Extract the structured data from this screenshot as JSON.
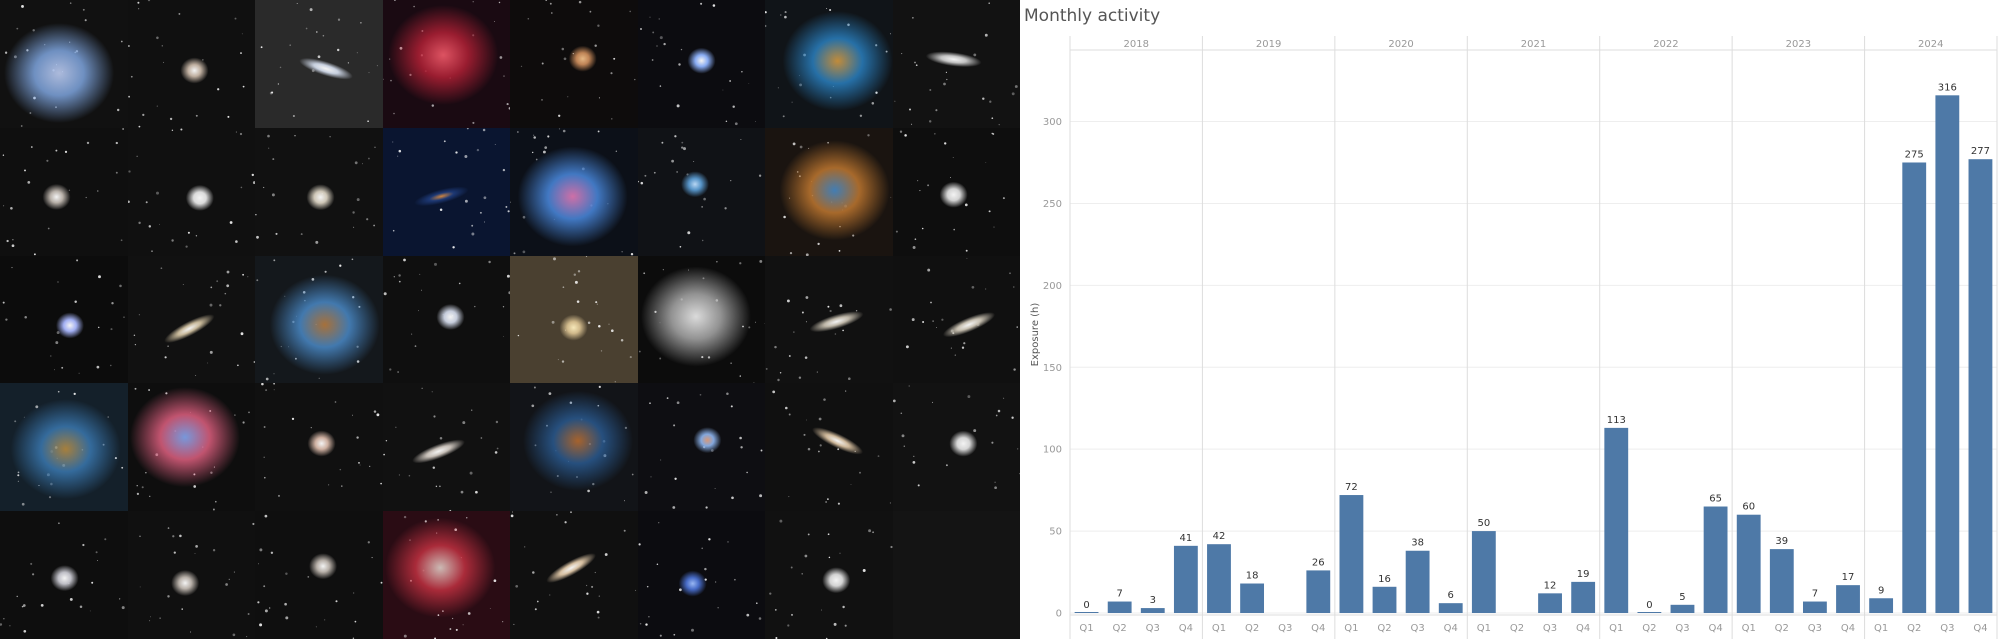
{
  "gallery": {
    "tiles": [
      {
        "kind": "nebula-small",
        "color": "#7fa6e0",
        "accent": "#c8d8ff",
        "bg": "#111"
      },
      {
        "kind": "galaxy-group",
        "color": "#c9b8a8",
        "accent": "#ffffff",
        "bg": "#101010"
      },
      {
        "kind": "comet-streak",
        "color": "#cfd8e8",
        "accent": "#ffffff",
        "bg": "#2a2a2a"
      },
      {
        "kind": "horsehead",
        "color": "#b02035",
        "accent": "#ff6070",
        "bg": "#1a0a12"
      },
      {
        "kind": "spiral-galaxy",
        "color": "#c88a5a",
        "accent": "#f0c08a",
        "bg": "#0e0c0c"
      },
      {
        "kind": "star-field-blue",
        "color": "#8fb4ff",
        "accent": "#ffffff",
        "bg": "#0c0c10"
      },
      {
        "kind": "nebula-colorful",
        "color": "#2a80c0",
        "accent": "#e0a040",
        "bg": "#101418"
      },
      {
        "kind": "elliptical-galaxy",
        "color": "#cccccc",
        "accent": "#ffffff",
        "bg": "#121212"
      },
      {
        "kind": "galaxy-small",
        "color": "#c0b8b0",
        "accent": "#ffffff",
        "bg": "#0f0f0f"
      },
      {
        "kind": "globular",
        "color": "#e6e6e6",
        "accent": "#ffffff",
        "bg": "#101010"
      },
      {
        "kind": "globular-small",
        "color": "#d8d0c0",
        "accent": "#ffffff",
        "bg": "#111"
      },
      {
        "kind": "comet-twilight",
        "color": "#1e3a78",
        "accent": "#d88a40",
        "bg": "#0a1530"
      },
      {
        "kind": "planetary-nebula",
        "color": "#4a8ae0",
        "accent": "#f080c0",
        "bg": "#0c1018"
      },
      {
        "kind": "planetary-small",
        "color": "#5a9ad0",
        "accent": "#c0e0ff",
        "bg": "#101216"
      },
      {
        "kind": "eagle-nebula",
        "color": "#c07830",
        "accent": "#4a90d0",
        "bg": "#1a1410"
      },
      {
        "kind": "globular-faint",
        "color": "#dddddd",
        "accent": "#ffffff",
        "bg": "#0e0e0e"
      },
      {
        "kind": "star-field",
        "color": "#aab8ff",
        "accent": "#ffffff",
        "bg": "#0c0c0c"
      },
      {
        "kind": "galaxy-oval",
        "color": "#d0c0a0",
        "accent": "#ffffff",
        "bg": "#111"
      },
      {
        "kind": "pillar-nebula",
        "color": "#4a8ac8",
        "accent": "#c08040",
        "bg": "#14181c"
      },
      {
        "kind": "open-cluster",
        "color": "#cfd6e6",
        "accent": "#ffffff",
        "bg": "#0f0f0f"
      },
      {
        "kind": "galaxy-glow",
        "color": "#d8c090",
        "accent": "#fff0c0",
        "bg": "#4a4030"
      },
      {
        "kind": "star-field-dark",
        "color": "#aaaaaa",
        "accent": "#ffffff",
        "bg": "#0c0c0c"
      },
      {
        "kind": "galaxy-edge",
        "color": "#c8c0b0",
        "accent": "#ffffff",
        "bg": "#111"
      },
      {
        "kind": "galaxy-edge-tilt",
        "color": "#d0c8b8",
        "accent": "#ffffff",
        "bg": "#101010"
      },
      {
        "kind": "nebula-sho",
        "color": "#3a78b0",
        "accent": "#c09040",
        "bg": "#14202a"
      },
      {
        "kind": "ring-nebula",
        "color": "#e06080",
        "accent": "#8ab0ff",
        "bg": "#0e0e0e"
      },
      {
        "kind": "galaxy-face",
        "color": "#d8b8a8",
        "accent": "#ffffff",
        "bg": "#101010"
      },
      {
        "kind": "galaxy-spindle",
        "color": "#d0c8c0",
        "accent": "#ffffff",
        "bg": "#111"
      },
      {
        "kind": "dark-nebula",
        "color": "#2a5a90",
        "accent": "#c07030",
        "bg": "#121418"
      },
      {
        "kind": "dumbbell",
        "color": "#8ab0e8",
        "accent": "#e0a080",
        "bg": "#0e0e12"
      },
      {
        "kind": "galaxy-tilt",
        "color": "#d8c0a0",
        "accent": "#ffffff",
        "bg": "#101010"
      },
      {
        "kind": "globular-bright",
        "color": "#e0e0e0",
        "accent": "#ffffff",
        "bg": "#121212"
      },
      {
        "kind": "whirlpool",
        "color": "#c8c8d0",
        "accent": "#ffffff",
        "bg": "#0e0e0e"
      },
      {
        "kind": "galaxy-pair",
        "color": "#c0b8b0",
        "accent": "#ffffff",
        "bg": "#101010"
      },
      {
        "kind": "galaxy-tiny",
        "color": "#c0b8b0",
        "accent": "#ffffff",
        "bg": "#0f0f0f"
      },
      {
        "kind": "crescent-nebula",
        "color": "#c03040",
        "accent": "#e8d8d0",
        "bg": "#2a0c14"
      },
      {
        "kind": "galaxy-sombrero",
        "color": "#e0c8a8",
        "accent": "#ffffff",
        "bg": "#101010"
      },
      {
        "kind": "blue-snowflake",
        "color": "#4a70d0",
        "accent": "#a0c0ff",
        "bg": "#0c0c10"
      },
      {
        "kind": "globular-dim",
        "color": "#dddddd",
        "accent": "#ffffff",
        "bg": "#111"
      },
      {
        "kind": "empty",
        "color": "#1a1a1a",
        "accent": "#1a1a1a",
        "bg": "#141414"
      }
    ]
  },
  "chart_title": "Monthly activity",
  "chart_data": {
    "type": "bar",
    "title": "Monthly activity",
    "ylabel": "Exposure (h)",
    "xlabel": "",
    "ylim": [
      0,
      340
    ],
    "yticks": [
      0,
      50,
      100,
      150,
      200,
      250,
      300
    ],
    "grid": true,
    "bar_color": "#4e79a7",
    "years": [
      {
        "year": "2018",
        "quarters": [
          {
            "q": "Q1",
            "value": 0,
            "label": "0"
          },
          {
            "q": "Q2",
            "value": 7,
            "label": "7"
          },
          {
            "q": "Q3",
            "value": 3,
            "label": "3"
          },
          {
            "q": "Q4",
            "value": 41,
            "label": "41"
          }
        ]
      },
      {
        "year": "2019",
        "quarters": [
          {
            "q": "Q1",
            "value": 42,
            "label": "42"
          },
          {
            "q": "Q2",
            "value": 18,
            "label": "18"
          },
          {
            "q": "Q3",
            "value": null,
            "label": ""
          },
          {
            "q": "Q4",
            "value": 26,
            "label": "26"
          }
        ]
      },
      {
        "year": "2020",
        "quarters": [
          {
            "q": "Q1",
            "value": 72,
            "label": "72"
          },
          {
            "q": "Q2",
            "value": 16,
            "label": "16"
          },
          {
            "q": "Q3",
            "value": 38,
            "label": "38"
          },
          {
            "q": "Q4",
            "value": 6,
            "label": "6"
          }
        ]
      },
      {
        "year": "2021",
        "quarters": [
          {
            "q": "Q1",
            "value": 50,
            "label": "50"
          },
          {
            "q": "Q2",
            "value": null,
            "label": ""
          },
          {
            "q": "Q3",
            "value": 12,
            "label": "12"
          },
          {
            "q": "Q4",
            "value": 19,
            "label": "19"
          }
        ]
      },
      {
        "year": "2022",
        "quarters": [
          {
            "q": "Q1",
            "value": 113,
            "label": "113"
          },
          {
            "q": "Q2",
            "value": 0,
            "label": "0"
          },
          {
            "q": "Q3",
            "value": 5,
            "label": "5"
          },
          {
            "q": "Q4",
            "value": 65,
            "label": "65"
          }
        ]
      },
      {
        "year": "2023",
        "quarters": [
          {
            "q": "Q1",
            "value": 60,
            "label": "60"
          },
          {
            "q": "Q2",
            "value": 39,
            "label": "39"
          },
          {
            "q": "Q3",
            "value": 7,
            "label": "7"
          },
          {
            "q": "Q4",
            "value": 17,
            "label": "17"
          }
        ]
      },
      {
        "year": "2024",
        "quarters": [
          {
            "q": "Q1",
            "value": 9,
            "label": "9"
          },
          {
            "q": "Q2",
            "value": 275,
            "label": "275"
          },
          {
            "q": "Q3",
            "value": 316,
            "label": "316"
          },
          {
            "q": "Q4",
            "value": 277,
            "label": "277"
          }
        ]
      }
    ]
  }
}
